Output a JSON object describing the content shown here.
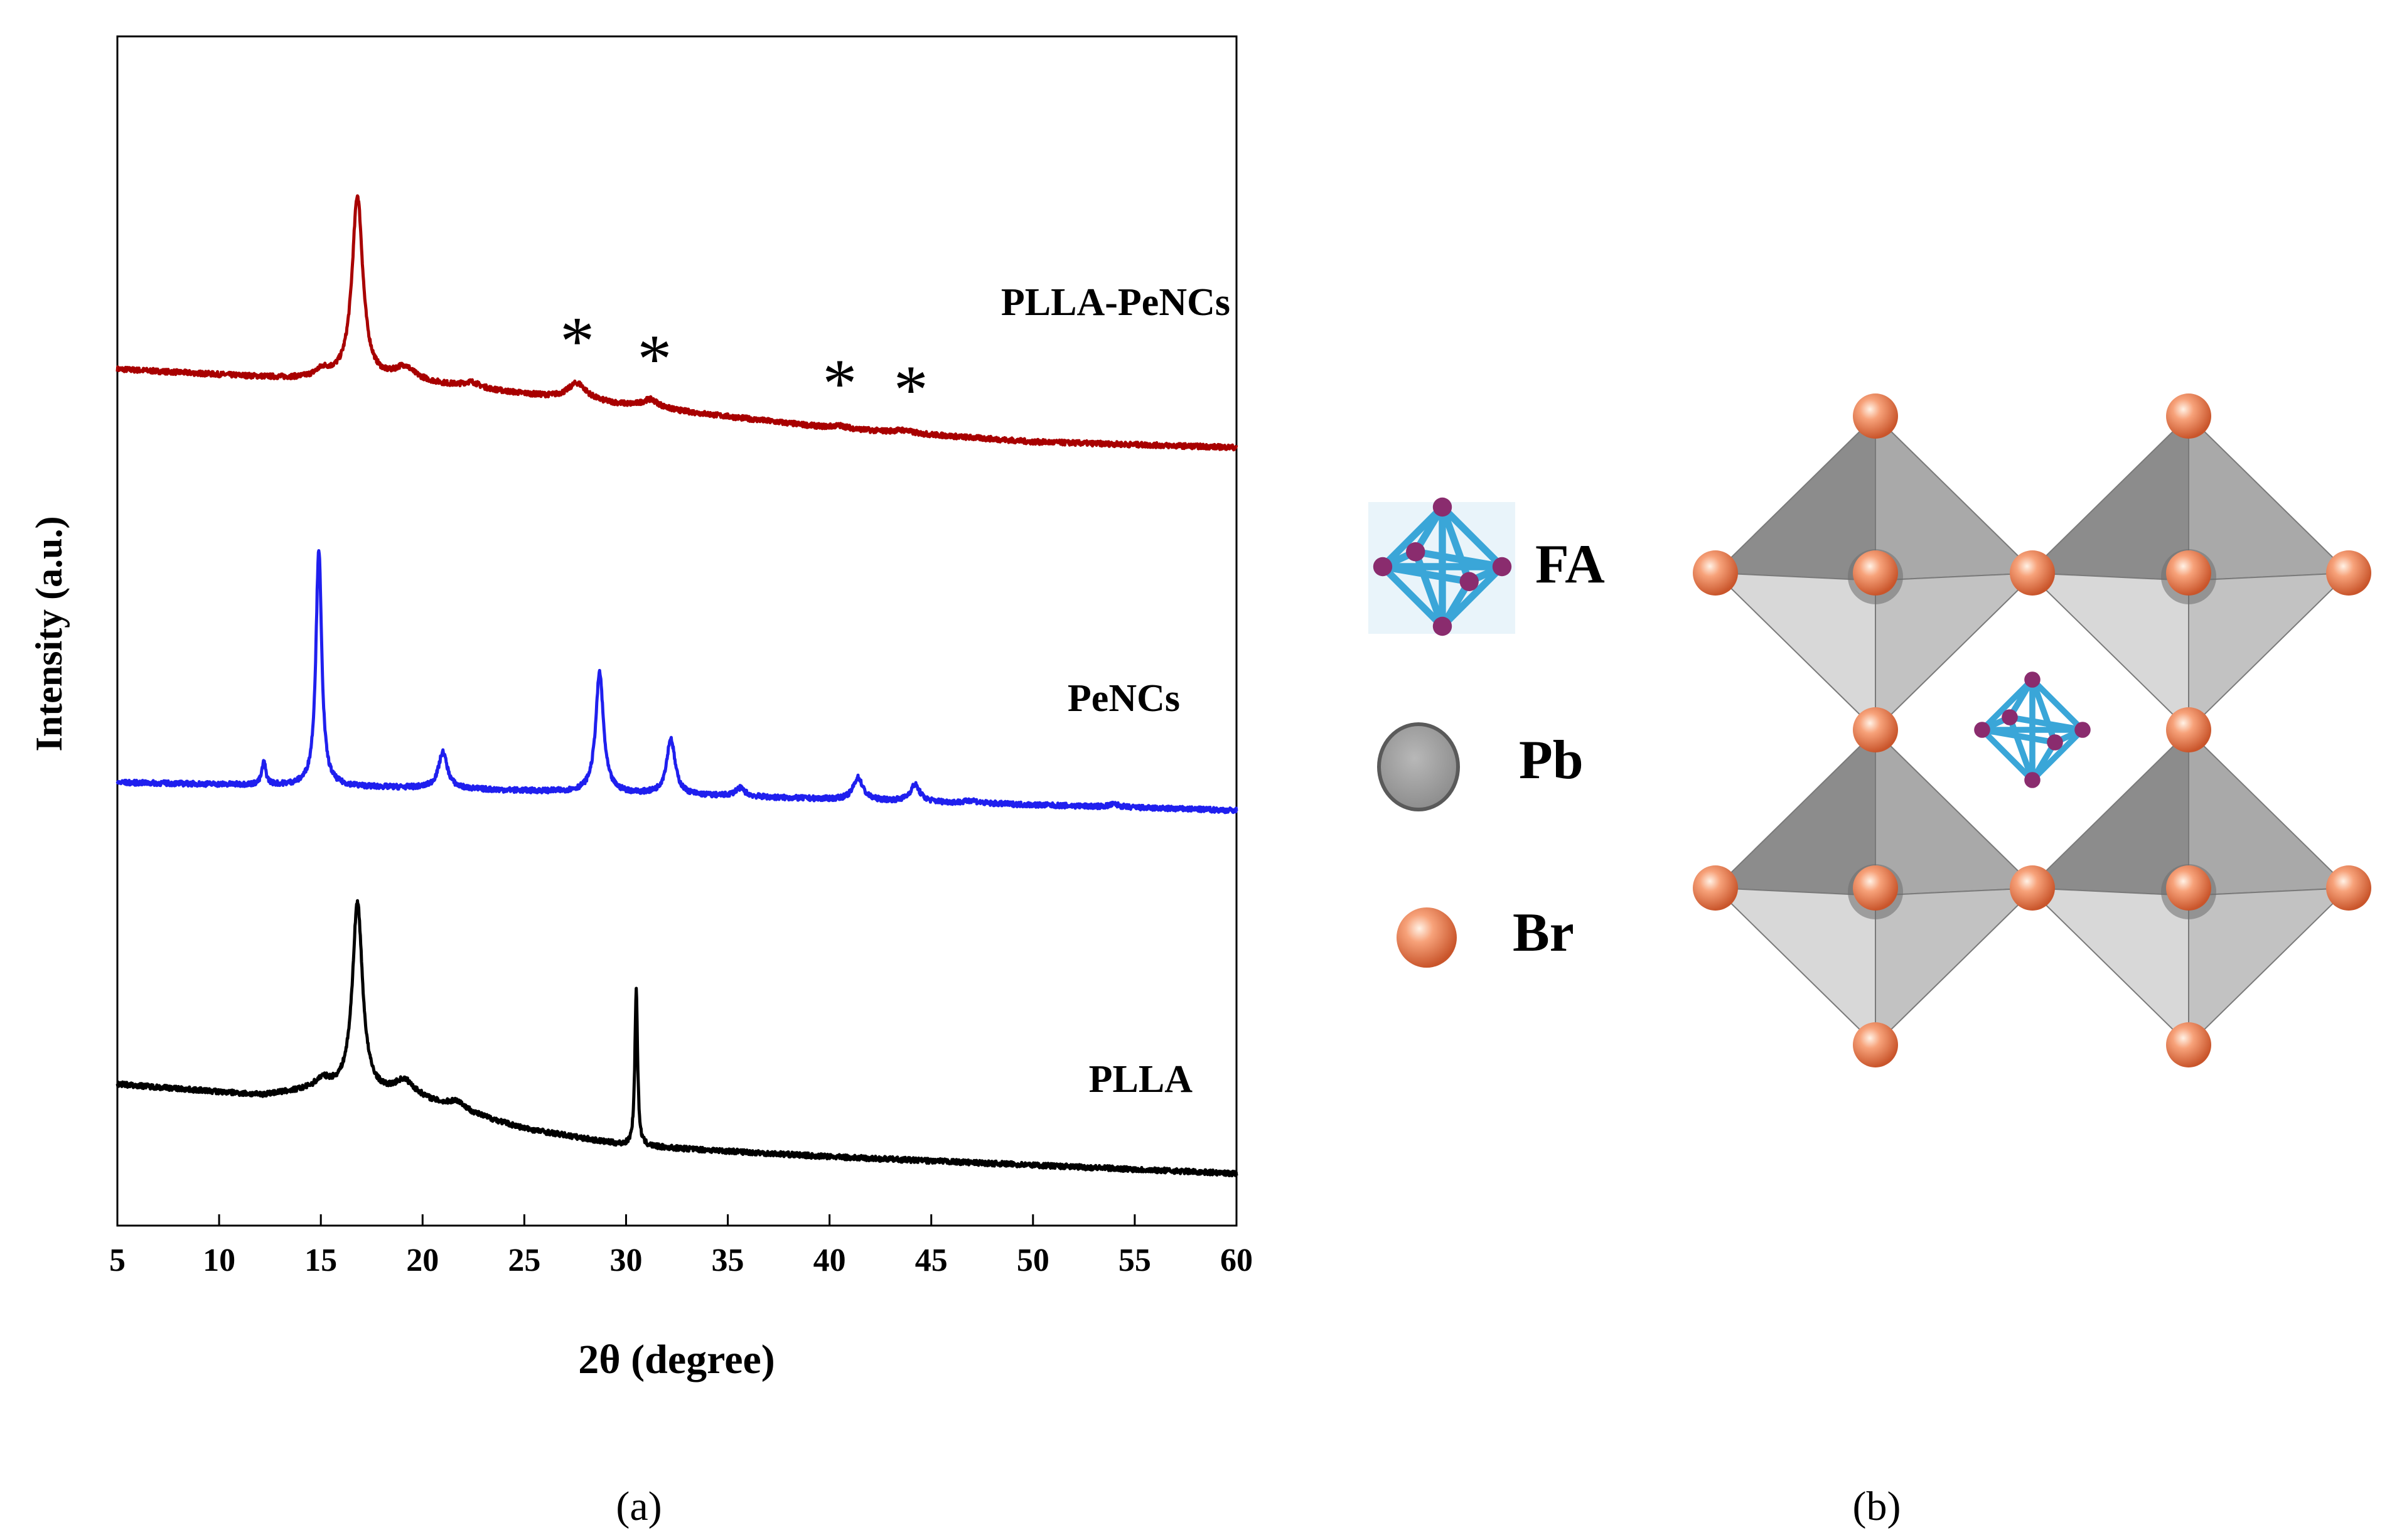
{
  "chart_data": {
    "type": "line",
    "title": "",
    "xlabel": "2θ (degree)",
    "ylabel": "Intensity (a.u.)",
    "xlim": [
      5,
      60
    ],
    "x_ticks": [
      5,
      10,
      15,
      20,
      25,
      30,
      35,
      40,
      45,
      50,
      55,
      60
    ],
    "y_ticks": [],
    "grid": false,
    "colors": {
      "PLLA-PeNCs": "#a80000",
      "PeNCs": "#1f1fee",
      "PLLA": "#000000"
    },
    "series": [
      {
        "name": "PLLA-PeNCs",
        "label": "PLLA-PeNCs",
        "offset": 2.6,
        "baseline": [
          [
            5,
            0.28
          ],
          [
            15,
            0.24
          ],
          [
            20,
            0.23
          ],
          [
            30,
            0.15
          ],
          [
            40,
            0.07
          ],
          [
            50,
            0.02
          ],
          [
            60,
            0.0
          ]
        ],
        "peaks": [
          {
            "pos": 16.8,
            "height": 0.66,
            "width": 0.32
          },
          {
            "pos": 15.1,
            "height": 0.03,
            "width": 0.45
          },
          {
            "pos": 19.1,
            "height": 0.05,
            "width": 0.6
          },
          {
            "pos": 22.4,
            "height": 0.02,
            "width": 0.5
          },
          {
            "pos": 27.6,
            "height": 0.06,
            "width": 0.55
          },
          {
            "pos": 31.2,
            "height": 0.03,
            "width": 0.5
          },
          {
            "pos": 40.5,
            "height": 0.01,
            "width": 0.5
          },
          {
            "pos": 43.6,
            "height": 0.01,
            "width": 0.5
          }
        ]
      },
      {
        "name": "PeNCs",
        "label": "PeNCs",
        "offset": 1.3,
        "baseline": [
          [
            5,
            0.1
          ],
          [
            20,
            0.08
          ],
          [
            40,
            0.04
          ],
          [
            60,
            0.0
          ]
        ],
        "peaks": [
          {
            "pos": 12.2,
            "height": 0.08,
            "width": 0.12
          },
          {
            "pos": 14.9,
            "height": 0.85,
            "width": 0.17
          },
          {
            "pos": 21.0,
            "height": 0.13,
            "width": 0.26
          },
          {
            "pos": 28.7,
            "height": 0.43,
            "width": 0.23
          },
          {
            "pos": 32.2,
            "height": 0.2,
            "width": 0.25
          },
          {
            "pos": 35.6,
            "height": 0.03,
            "width": 0.3
          },
          {
            "pos": 41.4,
            "height": 0.08,
            "width": 0.28
          },
          {
            "pos": 44.2,
            "height": 0.06,
            "width": 0.28
          },
          {
            "pos": 47.0,
            "height": 0.01,
            "width": 0.3
          },
          {
            "pos": 54.0,
            "height": 0.01,
            "width": 0.3
          }
        ]
      },
      {
        "name": "PLLA",
        "label": "PLLA",
        "offset": 0.0,
        "baseline": [
          [
            5,
            0.32
          ],
          [
            12,
            0.28
          ],
          [
            15,
            0.3
          ],
          [
            20,
            0.26
          ],
          [
            25,
            0.16
          ],
          [
            30,
            0.1
          ],
          [
            40,
            0.06
          ],
          [
            50,
            0.03
          ],
          [
            60,
            0.0
          ]
        ],
        "peaks": [
          {
            "pos": 16.8,
            "height": 0.68,
            "width": 0.3
          },
          {
            "pos": 15.1,
            "height": 0.03,
            "width": 0.45
          },
          {
            "pos": 19.1,
            "height": 0.06,
            "width": 0.6
          },
          {
            "pos": 21.7,
            "height": 0.03,
            "width": 0.5
          },
          {
            "pos": 30.5,
            "height": 0.56,
            "width": 0.08
          }
        ]
      }
    ],
    "annotations": [
      {
        "text": "*",
        "x": 27.6
      },
      {
        "text": "*",
        "x": 31.4
      },
      {
        "text": "*",
        "x": 40.5
      },
      {
        "text": "*",
        "x": 44.0
      }
    ],
    "panel_label": "(a)"
  },
  "structure": {
    "panel_label": "(b)",
    "legend": [
      {
        "key": "FA",
        "label": "FA",
        "icon": "fa-cation-icon"
      },
      {
        "key": "Pb",
        "label": "Pb",
        "icon": "pb-atom-icon"
      },
      {
        "key": "Br",
        "label": "Br",
        "icon": "br-atom-icon"
      }
    ],
    "colors": {
      "octahedron_dark": "#8f8f8f",
      "octahedron_light": "#d6d6d6",
      "br": "#f08a5c",
      "fa": "#3aa6d8",
      "fa_node": "#8a2c6e"
    }
  }
}
